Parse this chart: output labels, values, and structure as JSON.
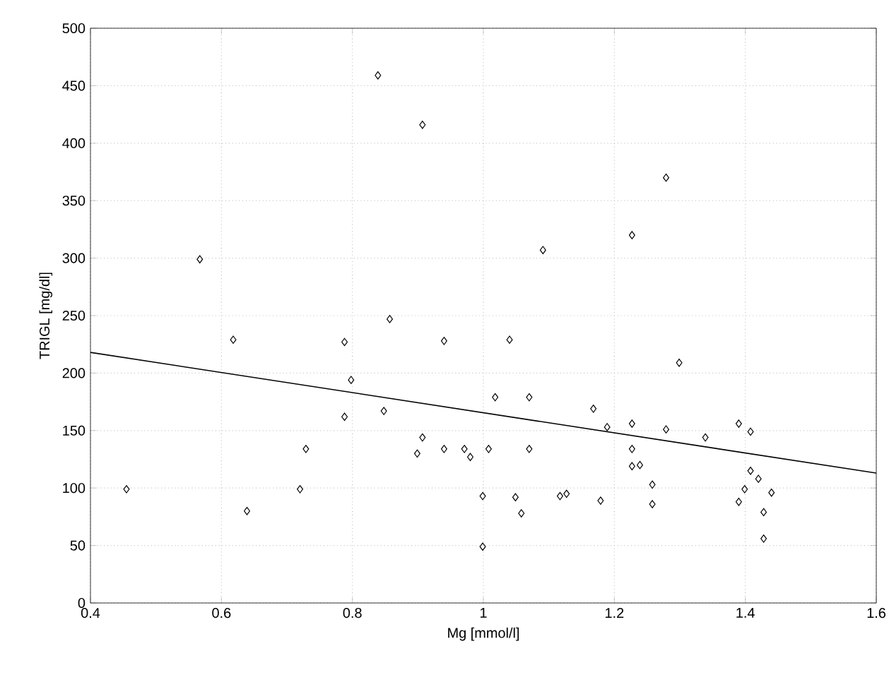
{
  "chart_data": {
    "type": "scatter",
    "xlabel": "Mg [mmol/l]",
    "ylabel": "TRIGL [mg/dl]",
    "xlim": [
      0.4,
      1.6
    ],
    "ylim": [
      0,
      500
    ],
    "xticks": [
      0.4,
      0.6,
      0.8,
      1,
      1.2,
      1.4,
      1.6
    ],
    "yticks": [
      0,
      50,
      100,
      150,
      200,
      250,
      300,
      350,
      400,
      450,
      500
    ],
    "grid": true,
    "series": [
      {
        "color": "#000000",
        "marker": "diamond",
        "x": [
          0.455,
          0.567,
          0.618,
          0.639,
          0.72,
          0.729,
          0.788,
          0.788,
          0.798,
          0.839,
          0.848,
          0.857,
          0.899,
          0.907,
          0.907,
          0.94,
          0.94,
          0.971,
          0.98,
          0.999,
          0.999,
          1.008,
          1.018,
          1.04,
          1.049,
          1.058,
          1.07,
          1.07,
          1.091,
          1.117,
          1.127,
          1.168,
          1.179,
          1.189,
          1.227,
          1.227,
          1.227,
          1.227,
          1.239,
          1.258,
          1.258,
          1.279,
          1.279,
          1.299,
          1.339,
          1.39,
          1.39,
          1.399,
          1.408,
          1.408,
          1.42,
          1.428,
          1.428,
          1.44
        ],
        "values": [
          99,
          299,
          229,
          80,
          99,
          134,
          227,
          162,
          194,
          459,
          167,
          247,
          130,
          416,
          144,
          228,
          134,
          134,
          127,
          93,
          49,
          134,
          179,
          229,
          92,
          78,
          179,
          134,
          307,
          93,
          95,
          169,
          89,
          153,
          320,
          156,
          134,
          119,
          120,
          103,
          86,
          370,
          151,
          209,
          144,
          156,
          88,
          99,
          149,
          115,
          108,
          79,
          56,
          96
        ]
      },
      {
        "type": "line",
        "color": "#000000",
        "marker": "none",
        "line_style": "solid",
        "x": [
          0.4,
          1.6
        ],
        "values": [
          218,
          113
        ]
      }
    ]
  }
}
